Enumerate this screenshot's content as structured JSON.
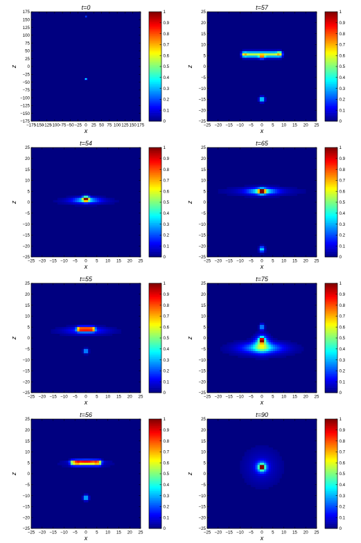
{
  "chart_data": [
    {
      "type": "heatmap",
      "title": "t=0",
      "xlabel": "x",
      "ylabel": "z",
      "xlim": [
        -175,
        175
      ],
      "ylim": [
        -175,
        175
      ],
      "xticks": [
        -175,
        -150,
        -125,
        -100,
        -75,
        -50,
        -25,
        0,
        25,
        50,
        75,
        100,
        125,
        150,
        175
      ],
      "yticks": [
        -175,
        -150,
        -125,
        -100,
        -75,
        -50,
        -25,
        0,
        25,
        50,
        75,
        100,
        125,
        150,
        175
      ],
      "xticklabels": [
        "−175",
        "−150",
        "−125",
        "−100",
        "−75",
        "−50",
        "−25",
        "0",
        "25",
        "50",
        "75",
        "100",
        "125",
        "150",
        "175"
      ],
      "yticklabels": [
        "−175",
        "−150",
        "−125",
        "−100",
        "−75",
        "−50",
        "−25",
        "0",
        "25",
        "50",
        "75",
        "100",
        "125",
        "150",
        "175"
      ],
      "colorbar": {
        "min": 0,
        "max": 1,
        "ticks": [
          0,
          0.1,
          0.2,
          0.3,
          0.4,
          0.5,
          0.6,
          0.7,
          0.8,
          0.9,
          1
        ],
        "ticklabels": [
          "0",
          "0.1",
          "0.2",
          "0.3",
          "0.4",
          "0.5",
          "0.6",
          "0.7",
          "0.8",
          "0.9",
          "1"
        ],
        "colormap": "jet"
      },
      "features": [
        {
          "shape": "blob",
          "x": 0,
          "z": 160,
          "sx": 1.5,
          "sz": 1.5,
          "value": 0.35
        },
        {
          "shape": "blob",
          "x": 0,
          "z": -40,
          "sx": 2.5,
          "sz": 1.5,
          "value": 0.6
        }
      ]
    },
    {
      "type": "heatmap",
      "title": "t=57",
      "xlabel": "x",
      "ylabel": "z",
      "xlim": [
        -25,
        25
      ],
      "ylim": [
        -25,
        25
      ],
      "xticks": [
        -25,
        -20,
        -15,
        -10,
        -5,
        0,
        5,
        10,
        15,
        20,
        25
      ],
      "yticks": [
        -25,
        -20,
        -15,
        -10,
        -5,
        0,
        5,
        10,
        15,
        20,
        25
      ],
      "xticklabels": [
        "−25",
        "−20",
        "−15",
        "−10",
        "−5",
        "0",
        "5",
        "10",
        "15",
        "20",
        "25"
      ],
      "yticklabels": [
        "−25",
        "−20",
        "−15",
        "−10",
        "−5",
        "0",
        "5",
        "10",
        "15",
        "20",
        "25"
      ],
      "colorbar": {
        "min": 0,
        "max": 1,
        "ticks": [
          0,
          0.1,
          0.2,
          0.3,
          0.4,
          0.5,
          0.6,
          0.7,
          0.8,
          0.9,
          1
        ],
        "ticklabels": [
          "0",
          "0.1",
          "0.2",
          "0.3",
          "0.4",
          "0.5",
          "0.6",
          "0.7",
          "0.8",
          "0.9",
          "1"
        ],
        "colormap": "jet"
      },
      "features": [
        {
          "shape": "bar",
          "x0": -8,
          "x1": 8,
          "z": 5.5,
          "sx": 0.9,
          "sz": 0.9,
          "value": 0.55
        },
        {
          "shape": "blob",
          "x": 0,
          "z": 4.5,
          "sx": 0.8,
          "sz": 0.6,
          "value": 0.55
        },
        {
          "shape": "blob",
          "x": 8,
          "z": 6,
          "sx": 0.7,
          "sz": 0.6,
          "value": 0.3
        },
        {
          "shape": "blob",
          "x": -8,
          "z": 5.5,
          "sx": 0.7,
          "sz": 0.6,
          "value": 0.2
        },
        {
          "shape": "blob",
          "x": 0,
          "z": -15,
          "sx": 0.8,
          "sz": 0.8,
          "value": 0.45
        }
      ]
    },
    {
      "type": "heatmap",
      "title": "t=54",
      "xlabel": "x",
      "ylabel": "z",
      "xlim": [
        -25,
        25
      ],
      "ylim": [
        -25,
        25
      ],
      "xticks": [
        -25,
        -20,
        -15,
        -10,
        -5,
        0,
        5,
        10,
        15,
        20,
        25
      ],
      "yticks": [
        -25,
        -20,
        -15,
        -10,
        -5,
        0,
        5,
        10,
        15,
        20,
        25
      ],
      "xticklabels": [
        "−25",
        "−20",
        "−15",
        "−10",
        "−5",
        "0",
        "5",
        "10",
        "15",
        "20",
        "25"
      ],
      "yticklabels": [
        "−25",
        "−20",
        "−15",
        "−10",
        "−5",
        "0",
        "5",
        "10",
        "15",
        "20",
        "25"
      ],
      "colorbar": {
        "min": 0,
        "max": 1,
        "ticks": [
          0,
          0.1,
          0.2,
          0.3,
          0.4,
          0.5,
          0.6,
          0.7,
          0.8,
          0.9,
          1
        ],
        "ticklabels": [
          "0",
          "0.1",
          "0.2",
          "0.3",
          "0.4",
          "0.5",
          "0.6",
          "0.7",
          "0.8",
          "0.9",
          "1"
        ],
        "colormap": "jet"
      },
      "features": [
        {
          "shape": "blob",
          "x": 0,
          "z": 1.5,
          "sx": 1.0,
          "sz": 0.8,
          "value": 0.85
        },
        {
          "shape": "blob",
          "x": 0,
          "z": 1,
          "sx": 4.0,
          "sz": 0.9,
          "value": 0.3
        },
        {
          "shape": "blob",
          "x": 0,
          "z": 0.5,
          "sx": 9.0,
          "sz": 1.2,
          "value": 0.08
        }
      ]
    },
    {
      "type": "heatmap",
      "title": "t=65",
      "xlabel": "x",
      "ylabel": "z",
      "xlim": [
        -25,
        25
      ],
      "ylim": [
        -25,
        25
      ],
      "xticks": [
        -25,
        -20,
        -15,
        -10,
        -5,
        0,
        5,
        10,
        15,
        20,
        25
      ],
      "yticks": [
        -25,
        -20,
        -15,
        -10,
        -5,
        0,
        5,
        10,
        15,
        20,
        25
      ],
      "xticklabels": [
        "−25",
        "−20",
        "−15",
        "−10",
        "−5",
        "0",
        "5",
        "10",
        "15",
        "20",
        "25"
      ],
      "yticklabels": [
        "−25",
        "−20",
        "−15",
        "−10",
        "−5",
        "0",
        "5",
        "10",
        "15",
        "20",
        "25"
      ],
      "colorbar": {
        "min": 0,
        "max": 1,
        "ticks": [
          0,
          0.1,
          0.2,
          0.3,
          0.4,
          0.5,
          0.6,
          0.7,
          0.8,
          0.9,
          1
        ],
        "ticklabels": [
          "0",
          "0.1",
          "0.2",
          "0.3",
          "0.4",
          "0.5",
          "0.6",
          "0.7",
          "0.8",
          "0.9",
          "1"
        ],
        "colormap": "jet"
      },
      "features": [
        {
          "shape": "blob",
          "x": 0,
          "z": 5,
          "sx": 1.2,
          "sz": 0.8,
          "value": 0.85
        },
        {
          "shape": "blob",
          "x": 0,
          "z": 5,
          "sx": 4.5,
          "sz": 1.0,
          "value": 0.35
        },
        {
          "shape": "blob",
          "x": 0,
          "z": 5,
          "sx": 12.0,
          "sz": 1.5,
          "value": 0.08
        },
        {
          "shape": "blob",
          "x": 0,
          "z": -21.5,
          "sx": 0.8,
          "sz": 0.9,
          "value": 0.4
        }
      ]
    },
    {
      "type": "heatmap",
      "title": "t=55",
      "xlabel": "x",
      "ylabel": "z",
      "xlim": [
        -25,
        25
      ],
      "ylim": [
        -25,
        25
      ],
      "xticks": [
        -25,
        -20,
        -15,
        -10,
        -5,
        0,
        5,
        10,
        15,
        20,
        25
      ],
      "yticks": [
        -25,
        -20,
        -15,
        -10,
        -5,
        0,
        5,
        10,
        15,
        20,
        25
      ],
      "xticklabels": [
        "−25",
        "−20",
        "−15",
        "−10",
        "−5",
        "0",
        "5",
        "10",
        "15",
        "20",
        "25"
      ],
      "yticklabels": [
        "−25",
        "−20",
        "−15",
        "−10",
        "−5",
        "0",
        "5",
        "10",
        "15",
        "20",
        "25"
      ],
      "colorbar": {
        "min": 0,
        "max": 1,
        "ticks": [
          0,
          0.1,
          0.2,
          0.3,
          0.4,
          0.5,
          0.6,
          0.7,
          0.8,
          0.9,
          1
        ],
        "ticklabels": [
          "0",
          "0.1",
          "0.2",
          "0.3",
          "0.4",
          "0.5",
          "0.6",
          "0.7",
          "0.8",
          "0.9",
          "1"
        ],
        "colormap": "jet"
      },
      "features": [
        {
          "shape": "bar",
          "x0": -3,
          "x1": 3,
          "z": 4,
          "sx": 0.8,
          "sz": 0.7,
          "value": 0.85
        },
        {
          "shape": "blob",
          "x": 0,
          "z": 3.5,
          "sx": 6.0,
          "sz": 1.2,
          "value": 0.15
        },
        {
          "shape": "blob",
          "x": 0,
          "z": 3,
          "sx": 11.0,
          "sz": 1.4,
          "value": 0.05
        },
        {
          "shape": "blob",
          "x": 0,
          "z": -6,
          "sx": 0.7,
          "sz": 0.7,
          "value": 0.4
        }
      ]
    },
    {
      "type": "heatmap",
      "title": "t=75",
      "xlabel": "x",
      "ylabel": "z",
      "xlim": [
        -25,
        25
      ],
      "ylim": [
        -25,
        25
      ],
      "xticks": [
        -25,
        -20,
        -15,
        -10,
        -5,
        0,
        5,
        10,
        15,
        20,
        25
      ],
      "yticks": [
        -25,
        -20,
        -15,
        -10,
        -5,
        0,
        5,
        10,
        15,
        20,
        25
      ],
      "xticklabels": [
        "−25",
        "−20",
        "−15",
        "−10",
        "−5",
        "0",
        "5",
        "10",
        "15",
        "20",
        "25"
      ],
      "yticklabels": [
        "−25",
        "−20",
        "−15",
        "−10",
        "−5",
        "0",
        "5",
        "10",
        "15",
        "20",
        "25"
      ],
      "colorbar": {
        "min": 0,
        "max": 1,
        "ticks": [
          0,
          0.1,
          0.2,
          0.3,
          0.4,
          0.5,
          0.6,
          0.7,
          0.8,
          0.9,
          1
        ],
        "ticklabels": [
          "0",
          "0.1",
          "0.2",
          "0.3",
          "0.4",
          "0.5",
          "0.6",
          "0.7",
          "0.8",
          "0.9",
          "1"
        ],
        "colormap": "jet"
      },
      "features": [
        {
          "shape": "blob",
          "x": 0,
          "z": -1,
          "sx": 0.8,
          "sz": 0.9,
          "value": 0.9
        },
        {
          "shape": "blob",
          "x": 0,
          "z": -2.5,
          "sx": 2.2,
          "sz": 2.5,
          "value": 0.35
        },
        {
          "shape": "blob",
          "x": 0,
          "z": -4.5,
          "sx": 6.0,
          "sz": 1.6,
          "value": 0.28
        },
        {
          "shape": "blob",
          "x": 0,
          "z": -5,
          "sx": 11.0,
          "sz": 2.5,
          "value": 0.08
        },
        {
          "shape": "blob",
          "x": 0,
          "z": 5,
          "sx": 0.7,
          "sz": 0.9,
          "value": 0.35
        }
      ]
    },
    {
      "type": "heatmap",
      "title": "t=56",
      "xlabel": "x",
      "ylabel": "z",
      "xlim": [
        -25,
        25
      ],
      "ylim": [
        -25,
        25
      ],
      "xticks": [
        -25,
        -20,
        -15,
        -10,
        -5,
        0,
        5,
        10,
        15,
        20,
        25
      ],
      "yticks": [
        -25,
        -20,
        -15,
        -10,
        -5,
        0,
        5,
        10,
        15,
        20,
        25
      ],
      "xticklabels": [
        "−25",
        "−20",
        "−15",
        "−10",
        "−5",
        "0",
        "5",
        "10",
        "15",
        "20",
        "25"
      ],
      "yticklabels": [
        "−25",
        "−20",
        "−15",
        "−10",
        "−5",
        "0",
        "5",
        "10",
        "15",
        "20",
        "25"
      ],
      "colorbar": {
        "min": 0,
        "max": 1,
        "ticks": [
          0,
          0.1,
          0.2,
          0.3,
          0.4,
          0.5,
          0.6,
          0.7,
          0.8,
          0.9,
          1
        ],
        "ticklabels": [
          "0",
          "0.1",
          "0.2",
          "0.3",
          "0.4",
          "0.5",
          "0.6",
          "0.7",
          "0.8",
          "0.9",
          "1"
        ],
        "colormap": "jet"
      },
      "features": [
        {
          "shape": "bar",
          "x0": -6,
          "x1": 6,
          "z": 5,
          "sx": 0.8,
          "sz": 0.8,
          "value": 0.6
        },
        {
          "shape": "blob",
          "x": 0,
          "z": 5.5,
          "sx": 4.0,
          "sz": 0.5,
          "value": 0.35
        },
        {
          "shape": "blob",
          "x": -4,
          "z": 5,
          "sx": 0.8,
          "sz": 0.6,
          "value": 0.2
        },
        {
          "shape": "blob",
          "x": 5,
          "z": 5,
          "sx": 0.8,
          "sz": 0.6,
          "value": 0.2
        },
        {
          "shape": "blob",
          "x": 0,
          "z": 4.5,
          "sx": 9.0,
          "sz": 1.2,
          "value": 0.06
        },
        {
          "shape": "blob",
          "x": 0,
          "z": -11,
          "sx": 0.8,
          "sz": 0.8,
          "value": 0.4
        }
      ]
    },
    {
      "type": "heatmap",
      "title": "t=90",
      "xlabel": "x",
      "ylabel": "z",
      "xlim": [
        -25,
        25
      ],
      "ylim": [
        -25,
        25
      ],
      "xticks": [
        -25,
        -20,
        -15,
        -10,
        -5,
        0,
        5,
        10,
        15,
        20,
        25
      ],
      "yticks": [
        -25,
        -20,
        -15,
        -10,
        -5,
        0,
        5,
        10,
        15,
        20,
        25
      ],
      "xticklabels": [
        "−25",
        "−20",
        "−15",
        "−10",
        "−5",
        "0",
        "5",
        "10",
        "15",
        "20",
        "25"
      ],
      "yticklabels": [
        "−25",
        "−20",
        "−15",
        "−10",
        "−5",
        "0",
        "5",
        "10",
        "15",
        "20",
        "25"
      ],
      "colorbar": {
        "min": 0,
        "max": 1,
        "ticks": [
          0,
          0.1,
          0.2,
          0.3,
          0.4,
          0.5,
          0.6,
          0.7,
          0.8,
          0.9,
          1
        ],
        "ticklabels": [
          "0",
          "0.1",
          "0.2",
          "0.3",
          "0.4",
          "0.5",
          "0.6",
          "0.7",
          "0.8",
          "0.9",
          "1"
        ],
        "colormap": "jet"
      },
      "features": [
        {
          "shape": "blob",
          "x": 0,
          "z": 3,
          "sx": 0.7,
          "sz": 0.7,
          "value": 0.95
        },
        {
          "shape": "blob",
          "x": 0,
          "z": 3,
          "sx": 1.6,
          "sz": 1.6,
          "value": 0.45
        },
        {
          "shape": "blob",
          "x": 0,
          "z": 3,
          "sx": 6.0,
          "sz": 6.0,
          "value": 0.08
        }
      ]
    }
  ]
}
